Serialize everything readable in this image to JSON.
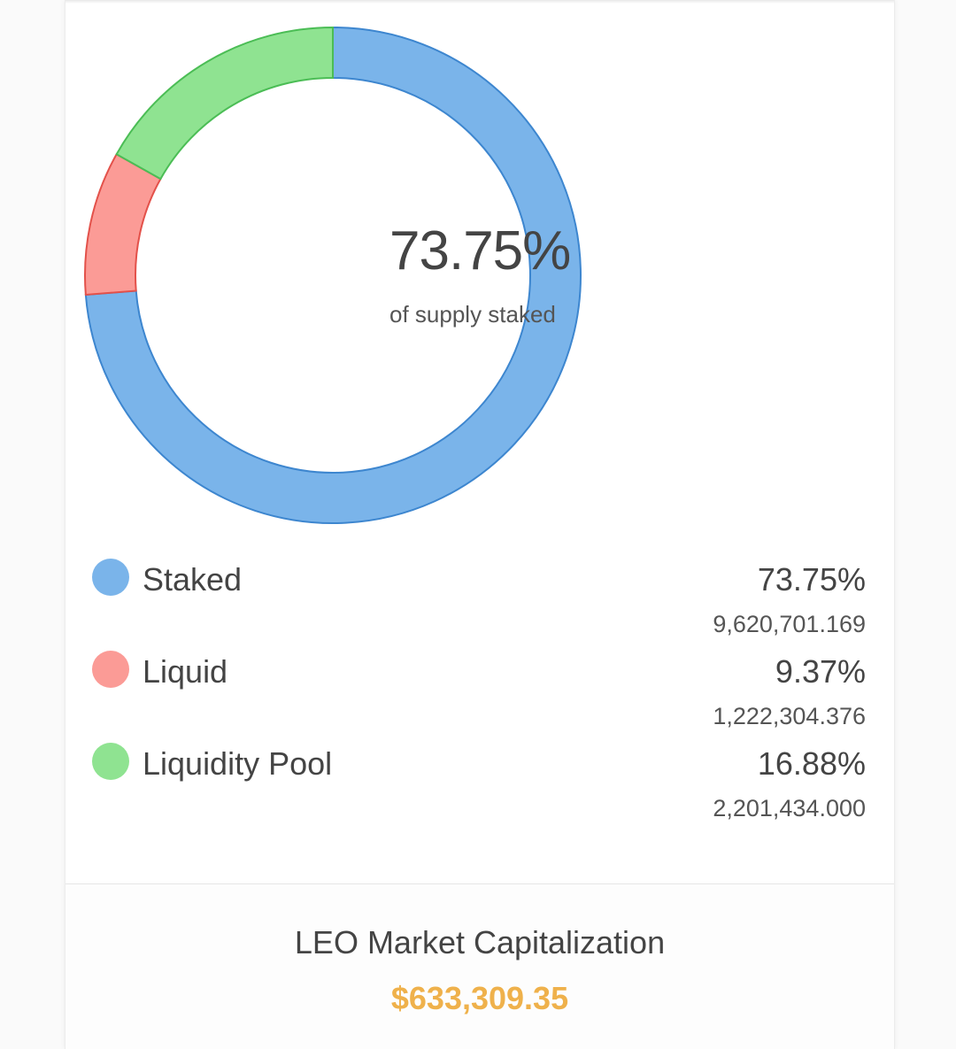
{
  "chart_data": {
    "type": "pie",
    "variant": "doughnut",
    "center_text": {
      "value": "73.75%",
      "caption": "of supply staked"
    },
    "categories": [
      "Staked",
      "Liquid",
      "Liquidity Pool"
    ],
    "values": [
      73.75,
      9.37,
      16.88
    ],
    "amounts": [
      "9,620,701.169",
      "1,222,304.376",
      "2,201,434.000"
    ],
    "percent_labels": [
      "73.75%",
      "9.37%",
      "16.88%"
    ],
    "colors": {
      "Staked": {
        "fill": "#7ab4ea",
        "stroke": "#3d86cf",
        "legend": "#7ab4ea"
      },
      "Liquid": {
        "fill": "#fb9b96",
        "stroke": "#e3514a",
        "legend": "#fb9b96"
      },
      "Liquidity Pool": {
        "fill": "#8fe391",
        "stroke": "#4bbd55",
        "legend": "#8fe391"
      }
    },
    "slice_order_clockwise_from_top": [
      "Staked",
      "Liquid",
      "Liquidity Pool"
    ]
  },
  "legend": [
    {
      "label": "Staked",
      "percent": "73.75%",
      "amount": "9,620,701.169",
      "color": "#7ab4ea"
    },
    {
      "label": "Liquid",
      "percent": "9.37%",
      "amount": "1,222,304.376",
      "color": "#fb9b96"
    },
    {
      "label": "Liquidity Pool",
      "percent": "16.88%",
      "amount": "2,201,434.000",
      "color": "#8fe391"
    }
  ],
  "market_cap": {
    "label": "LEO Market Capitalization",
    "value": "$633,309.35",
    "color": "#efb14b"
  }
}
